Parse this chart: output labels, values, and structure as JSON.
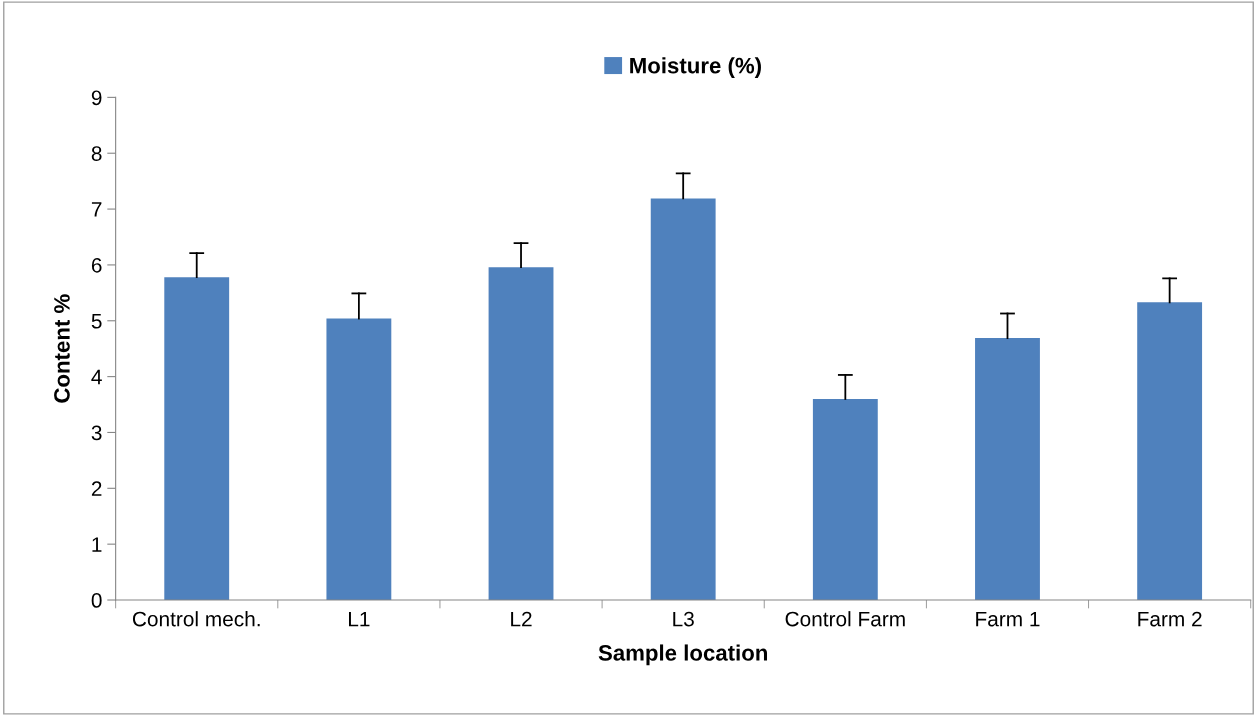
{
  "chart_data": {
    "type": "bar",
    "xlabel": "Sample location",
    "ylabel": "Content %",
    "categories": [
      "Control mech.",
      "L1",
      "L2",
      "L3",
      "Control Farm",
      "Farm 1",
      "Farm 2"
    ],
    "series": [
      {
        "name": "Moisture (%)",
        "color": "#4f81bd",
        "values": [
          5.78,
          5.04,
          5.96,
          7.19,
          3.6,
          4.69,
          5.33
        ],
        "errors": [
          [
            5.78,
            6.21
          ],
          [
            5.04,
            5.49
          ],
          [
            5.96,
            6.39
          ],
          [
            7.19,
            7.64
          ],
          [
            3.6,
            4.03
          ],
          [
            4.69,
            5.13
          ],
          [
            5.33,
            5.76
          ]
        ]
      }
    ],
    "ylim": [
      0,
      9
    ],
    "yticks": [
      0,
      1,
      2,
      3,
      4,
      5,
      6,
      7,
      8,
      9
    ],
    "grid": false,
    "legend": "top"
  }
}
